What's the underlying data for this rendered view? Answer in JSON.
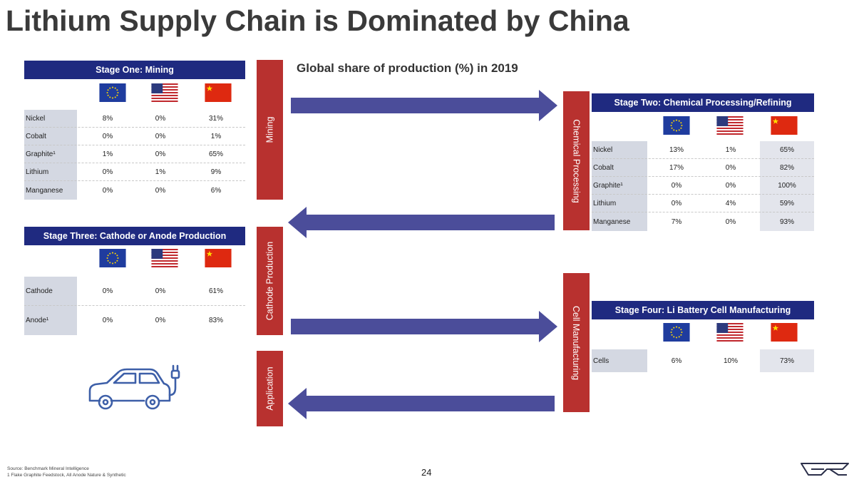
{
  "title": "Lithium Supply Chain is Dominated by China",
  "subtitle": "Global share of production (%) in 2019",
  "flags": {
    "eu": "eu-flag",
    "us": "us-flag",
    "cn": "china-flag"
  },
  "colors": {
    "header_blue": "#1f2a80",
    "bar_red": "#b8312f",
    "arrow_purple": "#4b4d9a",
    "label_gray": "#d4d8e2"
  },
  "stage_one": {
    "header": "Stage One: Mining",
    "rows": [
      {
        "label": "Nickel",
        "eu": "8%",
        "us": "0%",
        "cn": "31%"
      },
      {
        "label": "Cobalt",
        "eu": "0%",
        "us": "0%",
        "cn": "1%"
      },
      {
        "label": "Graphite¹",
        "eu": "1%",
        "us": "0%",
        "cn": "65%"
      },
      {
        "label": "Lithium",
        "eu": "0%",
        "us": "1%",
        "cn": "9%"
      },
      {
        "label": "Manganese",
        "eu": "0%",
        "us": "0%",
        "cn": "6%"
      }
    ]
  },
  "stage_two": {
    "header": "Stage Two: Chemical Processing/Refining",
    "rows": [
      {
        "label": "Nickel",
        "eu": "13%",
        "us": "1%",
        "cn": "65%"
      },
      {
        "label": "Cobalt",
        "eu": "17%",
        "us": "0%",
        "cn": "82%"
      },
      {
        "label": "Graphite¹",
        "eu": "0%",
        "us": "0%",
        "cn": "100%"
      },
      {
        "label": "Lithium",
        "eu": "0%",
        "us": "4%",
        "cn": "59%"
      },
      {
        "label": "Manganese",
        "eu": "7%",
        "us": "0%",
        "cn": "93%"
      }
    ]
  },
  "stage_three": {
    "header": "Stage Three: Cathode or Anode Production",
    "rows": [
      {
        "label": "Cathode",
        "eu": "0%",
        "us": "0%",
        "cn": "61%"
      },
      {
        "label": "Anode¹",
        "eu": "0%",
        "us": "0%",
        "cn": "83%"
      }
    ]
  },
  "stage_four": {
    "header": "Stage Four: Li Battery Cell Manufacturing",
    "rows": [
      {
        "label": "Cells",
        "eu": "6%",
        "us": "10%",
        "cn": "73%"
      }
    ]
  },
  "bars": {
    "mining": "Mining",
    "chemical": "Chemical Processing",
    "cathode": "Cathode Production",
    "cell": "Cell Manufacturing",
    "application": "Application"
  },
  "footer": {
    "source": "Source: Benchmark Mineral Intelligence",
    "note": "1 Flake Graphite Feedstock, All Anode Nature & Synthetic",
    "page": "24"
  },
  "icons": {
    "car": "electric-car-icon",
    "logo": "company-logo-icon"
  }
}
